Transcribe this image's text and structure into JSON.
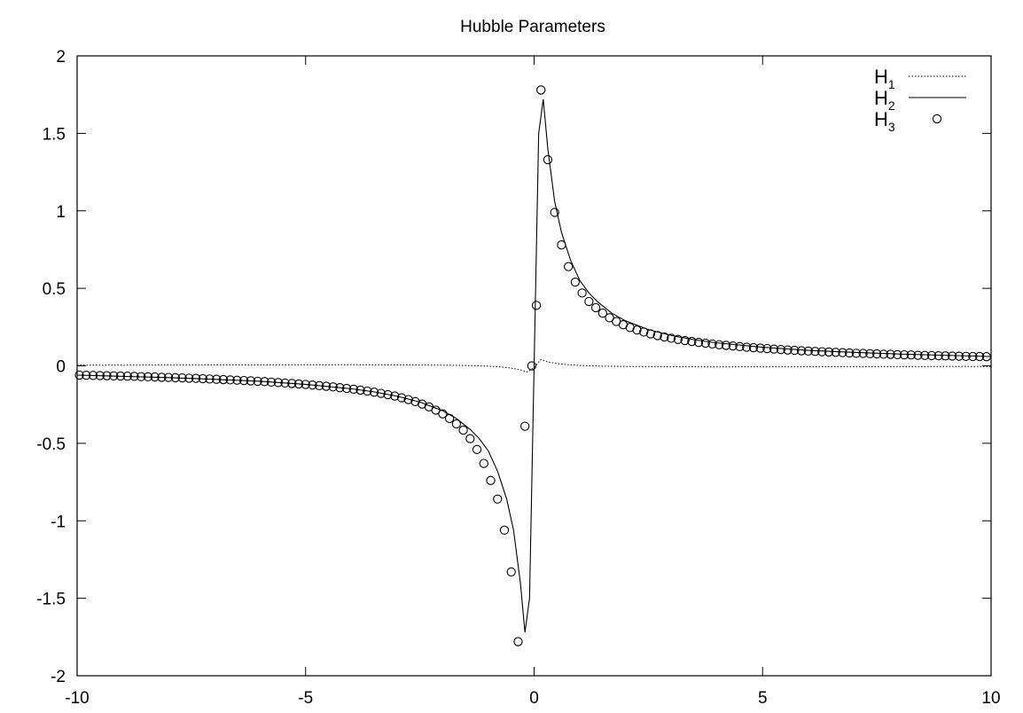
{
  "chart_data": {
    "type": "line",
    "title": "Hubble Parameters",
    "xlabel": "",
    "ylabel": "",
    "xlim": [
      -10,
      10
    ],
    "ylim": [
      -2,
      2
    ],
    "x_ticks": [
      -10,
      -5,
      0,
      5,
      10
    ],
    "y_ticks": [
      -2,
      -1.5,
      -1,
      -0.5,
      0,
      0.5,
      1,
      1.5,
      2
    ],
    "x_tick_labels": [
      "-10",
      "-5",
      "0",
      "5",
      "10"
    ],
    "y_tick_labels": [
      "-2",
      "-1.5",
      "-1",
      "-0.5",
      "0",
      "0.5",
      "1",
      "1.5",
      "2"
    ],
    "grid": false,
    "legend_position": "top-right",
    "series": [
      {
        "name": "H1",
        "name_main": "H",
        "name_sub": "1",
        "style": "dotted",
        "x": [
          -10,
          -8,
          -6,
          -4,
          -3,
          -2,
          -1.5,
          -1,
          -0.7,
          -0.5,
          -0.3,
          -0.15,
          0,
          0.15,
          0.3,
          0.5,
          0.7,
          1,
          1.5,
          2,
          3,
          4,
          6,
          8,
          10
        ],
        "y": [
          0.004,
          0.005,
          0.006,
          0.007,
          0.006,
          0.004,
          0.002,
          -0.002,
          -0.008,
          -0.015,
          -0.025,
          -0.04,
          -0.01,
          0.04,
          0.025,
          0.015,
          0.008,
          0.002,
          -0.002,
          -0.004,
          -0.006,
          -0.007,
          -0.006,
          -0.005,
          -0.004
        ]
      },
      {
        "name": "H2",
        "name_main": "H",
        "name_sub": "2",
        "style": "solid",
        "x": [
          -10,
          -9,
          -8,
          -7,
          -6,
          -5,
          -4,
          -3.5,
          -3,
          -2.5,
          -2,
          -1.7,
          -1.4,
          -1.2,
          -1,
          -0.8,
          -0.6,
          -0.45,
          -0.3,
          -0.2,
          -0.1,
          0,
          0.1,
          0.2,
          0.3,
          0.45,
          0.6,
          0.8,
          1,
          1.2,
          1.4,
          1.7,
          2,
          2.5,
          3,
          3.5,
          4,
          5,
          6,
          7,
          8,
          9,
          10
        ],
        "y": [
          -0.06,
          -0.068,
          -0.076,
          -0.087,
          -0.1,
          -0.12,
          -0.148,
          -0.168,
          -0.196,
          -0.234,
          -0.29,
          -0.34,
          -0.41,
          -0.47,
          -0.55,
          -0.68,
          -0.86,
          -1.06,
          -1.4,
          -1.72,
          -1.5,
          0,
          1.5,
          1.72,
          1.4,
          1.06,
          0.86,
          0.68,
          0.55,
          0.47,
          0.41,
          0.34,
          0.29,
          0.234,
          0.196,
          0.168,
          0.148,
          0.12,
          0.1,
          0.087,
          0.076,
          0.068,
          0.06
        ]
      },
      {
        "name": "H3",
        "name_main": "H",
        "name_sub": "3",
        "style": "circles",
        "x": [
          -9.95,
          -9.8,
          -9.65,
          -9.5,
          -9.35,
          -9.2,
          -9.05,
          -8.9,
          -8.75,
          -8.6,
          -8.45,
          -8.3,
          -8.15,
          -8.0,
          -7.85,
          -7.7,
          -7.55,
          -7.4,
          -7.25,
          -7.1,
          -6.95,
          -6.8,
          -6.65,
          -6.5,
          -6.35,
          -6.2,
          -6.05,
          -5.9,
          -5.75,
          -5.6,
          -5.45,
          -5.3,
          -5.15,
          -5.0,
          -4.85,
          -4.7,
          -4.55,
          -4.4,
          -4.25,
          -4.1,
          -3.95,
          -3.8,
          -3.65,
          -3.5,
          -3.35,
          -3.2,
          -3.05,
          -2.9,
          -2.75,
          -2.6,
          -2.45,
          -2.3,
          -2.15,
          -2.0,
          -1.85,
          -1.7,
          -1.55,
          -1.4,
          -1.25,
          -1.1,
          -0.95,
          -0.8,
          -0.65,
          -0.5,
          -0.35,
          -0.2,
          -0.05,
          0.05,
          0.15,
          0.3,
          0.45,
          0.6,
          0.75,
          0.9,
          1.05,
          1.2,
          1.35,
          1.5,
          1.65,
          1.8,
          1.95,
          2.1,
          2.25,
          2.4,
          2.55,
          2.7,
          2.85,
          3.0,
          3.15,
          3.3,
          3.45,
          3.6,
          3.75,
          3.9,
          4.05,
          4.2,
          4.35,
          4.5,
          4.65,
          4.8,
          4.95,
          5.1,
          5.25,
          5.4,
          5.55,
          5.7,
          5.85,
          6.0,
          6.15,
          6.3,
          6.45,
          6.6,
          6.75,
          6.9,
          7.05,
          7.2,
          7.35,
          7.5,
          7.65,
          7.8,
          7.95,
          8.1,
          8.25,
          8.4,
          8.55,
          8.7,
          8.85,
          9.0,
          9.15,
          9.3,
          9.45,
          9.6,
          9.75,
          9.9
        ],
        "y": [
          -0.06,
          -0.061,
          -0.062,
          -0.063,
          -0.064,
          -0.065,
          -0.066,
          -0.067,
          -0.068,
          -0.07,
          -0.071,
          -0.072,
          -0.074,
          -0.075,
          -0.077,
          -0.078,
          -0.08,
          -0.081,
          -0.083,
          -0.085,
          -0.087,
          -0.089,
          -0.091,
          -0.093,
          -0.095,
          -0.097,
          -0.1,
          -0.102,
          -0.105,
          -0.108,
          -0.111,
          -0.114,
          -0.117,
          -0.12,
          -0.124,
          -0.128,
          -0.132,
          -0.136,
          -0.141,
          -0.146,
          -0.151,
          -0.157,
          -0.163,
          -0.17,
          -0.178,
          -0.186,
          -0.195,
          -0.206,
          -0.218,
          -0.231,
          -0.247,
          -0.265,
          -0.286,
          -0.31,
          -0.34,
          -0.375,
          -0.415,
          -0.47,
          -0.54,
          -0.63,
          -0.74,
          -0.86,
          -1.06,
          -1.33,
          -1.78,
          -0.39,
          0,
          0.39,
          1.78,
          1.33,
          0.99,
          0.78,
          0.64,
          0.54,
          0.47,
          0.415,
          0.375,
          0.34,
          0.31,
          0.286,
          0.265,
          0.247,
          0.231,
          0.218,
          0.206,
          0.195,
          0.186,
          0.178,
          0.17,
          0.163,
          0.157,
          0.151,
          0.146,
          0.141,
          0.136,
          0.132,
          0.128,
          0.124,
          0.12,
          0.117,
          0.114,
          0.111,
          0.108,
          0.105,
          0.102,
          0.1,
          0.097,
          0.095,
          0.093,
          0.091,
          0.089,
          0.087,
          0.085,
          0.083,
          0.081,
          0.08,
          0.078,
          0.077,
          0.075,
          0.074,
          0.072,
          0.071,
          0.07,
          0.068,
          0.067,
          0.066,
          0.065,
          0.064,
          0.063,
          0.062,
          0.061,
          0.06,
          0.06,
          0.059
        ]
      }
    ]
  }
}
